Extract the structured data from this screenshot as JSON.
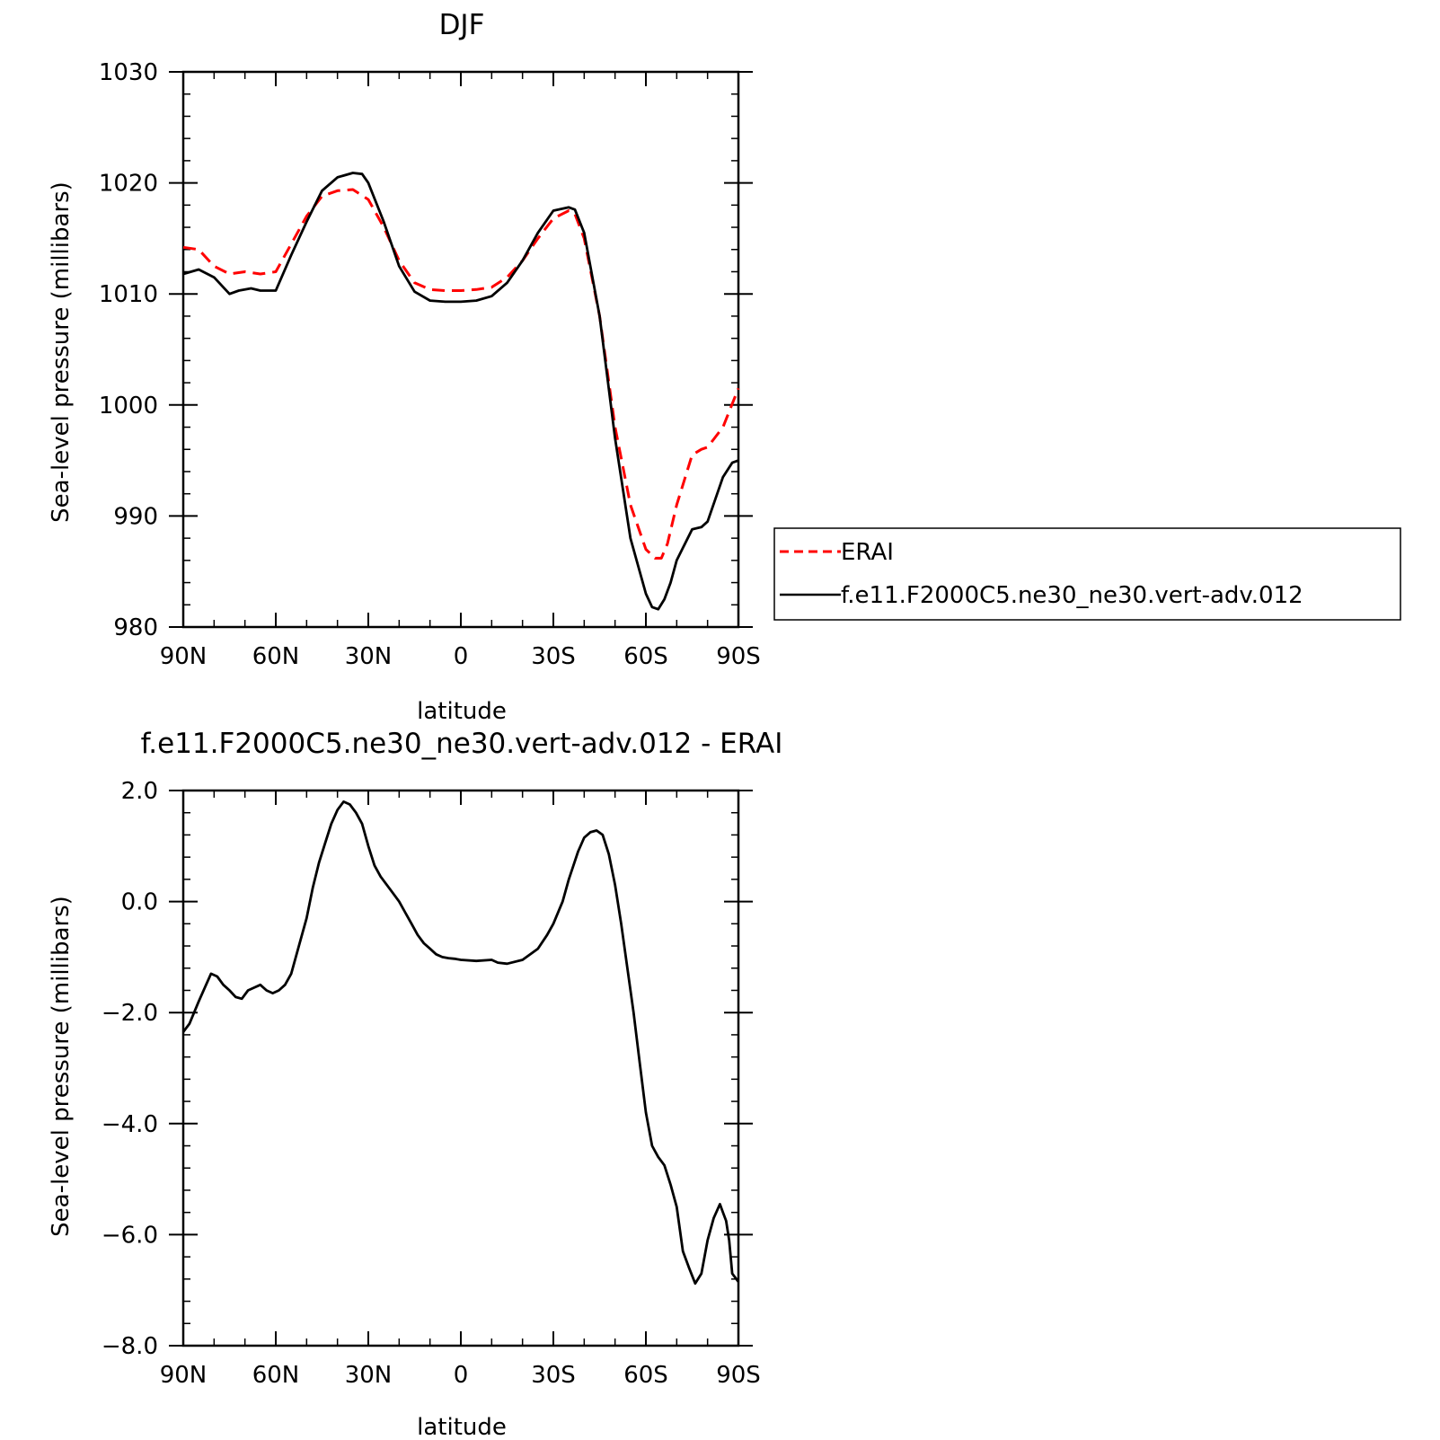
{
  "colors": {
    "erai": "#ff0000",
    "model": "#000000",
    "axes": "#000000"
  },
  "chart_data": [
    {
      "type": "line",
      "title": "DJF",
      "xlabel": "latitude",
      "ylabel": "Sea-level pressure (millibars)",
      "xlim": [
        90,
        -90
      ],
      "ylim": [
        980,
        1030
      ],
      "xticks": [
        90,
        60,
        30,
        0,
        -30,
        -60,
        -90
      ],
      "xticklabels": [
        "90N",
        "60N",
        "30N",
        "0",
        "30S",
        "60S",
        "90S"
      ],
      "yticks": [
        980,
        990,
        1000,
        1010,
        1020,
        1030
      ],
      "yticklabels": [
        "980",
        "990",
        "1000",
        "1010",
        "1020",
        "1030"
      ],
      "legend": "right",
      "series": [
        {
          "name": "ERAI",
          "style": "dashed",
          "color": "#ff0000",
          "x": [
            90,
            85,
            80,
            75,
            70,
            65,
            60,
            55,
            50,
            45,
            40,
            35,
            30,
            25,
            20,
            15,
            10,
            5,
            0,
            -5,
            -10,
            -15,
            -20,
            -25,
            -30,
            -35,
            -37,
            -40,
            -45,
            -50,
            -55,
            -60,
            -63,
            -65,
            -67,
            -70,
            -75,
            -78,
            -80,
            -85,
            -90
          ],
          "y": [
            1014.2,
            1014.0,
            1012.5,
            1011.8,
            1012.0,
            1011.8,
            1012.0,
            1014.5,
            1017.0,
            1018.8,
            1019.3,
            1019.4,
            1018.5,
            1016.0,
            1013.0,
            1011.0,
            1010.4,
            1010.3,
            1010.3,
            1010.4,
            1010.6,
            1011.5,
            1013.0,
            1015.0,
            1016.8,
            1017.5,
            1017.2,
            1015.0,
            1008.0,
            998.0,
            991.0,
            987.0,
            986.2,
            986.2,
            987.5,
            991.0,
            995.5,
            996.0,
            996.2,
            998.0,
            1001.5
          ]
        },
        {
          "name": "f.e11.F2000C5.ne30_ne30.vert-adv.012",
          "style": "solid",
          "color": "#000000",
          "x": [
            90,
            85,
            80,
            75,
            72,
            68,
            65,
            60,
            55,
            50,
            45,
            40,
            35,
            32,
            30,
            25,
            20,
            15,
            10,
            5,
            0,
            -5,
            -10,
            -15,
            -20,
            -25,
            -30,
            -35,
            -37,
            -40,
            -45,
            -50,
            -55,
            -60,
            -62,
            -64,
            -66,
            -68,
            -70,
            -75,
            -78,
            -80,
            -85,
            -88,
            -90
          ],
          "y": [
            1011.8,
            1012.2,
            1011.5,
            1010.0,
            1010.3,
            1010.5,
            1010.3,
            1010.3,
            1013.5,
            1016.5,
            1019.3,
            1020.5,
            1020.9,
            1020.8,
            1020.0,
            1016.5,
            1012.5,
            1010.2,
            1009.4,
            1009.3,
            1009.3,
            1009.4,
            1009.8,
            1011.0,
            1013.0,
            1015.5,
            1017.5,
            1017.8,
            1017.6,
            1015.5,
            1008.0,
            997.0,
            988.0,
            983.0,
            981.8,
            981.6,
            982.5,
            984.0,
            986.0,
            988.8,
            989.0,
            989.5,
            993.5,
            994.8,
            995.0
          ]
        }
      ]
    },
    {
      "type": "line",
      "title": "f.e11.F2000C5.ne30_ne30.vert-adv.012 - ERAI",
      "xlabel": "latitude",
      "ylabel": "Sea-level pressure (millibars)",
      "xlim": [
        90,
        -90
      ],
      "ylim": [
        -8.0,
        2.0
      ],
      "xticks": [
        90,
        60,
        30,
        0,
        -30,
        -60,
        -90
      ],
      "xticklabels": [
        "90N",
        "60N",
        "30N",
        "0",
        "30S",
        "60S",
        "90S"
      ],
      "yticks": [
        -8,
        -6,
        -4,
        -2,
        0,
        2
      ],
      "yticklabels": [
        "−8.0",
        "−6.0",
        "−4.0",
        "−2.0",
        "0.0",
        "2.0"
      ],
      "series": [
        {
          "style": "solid",
          "color": "#000000",
          "x": [
            90,
            88,
            85,
            83,
            81,
            79,
            77,
            75,
            73,
            71,
            69,
            67,
            65,
            63,
            61,
            59,
            57,
            55,
            53,
            50,
            48,
            46,
            44,
            42,
            40,
            38,
            36,
            34,
            32,
            30,
            28,
            26,
            24,
            22,
            20,
            18,
            16,
            14,
            12,
            10,
            8,
            6,
            4,
            2,
            0,
            -5,
            -10,
            -12,
            -15,
            -20,
            -25,
            -28,
            -30,
            -33,
            -35,
            -38,
            -40,
            -42,
            -44,
            -46,
            -48,
            -50,
            -52,
            -54,
            -56,
            -58,
            -60,
            -62,
            -64,
            -66,
            -68,
            -70,
            -72,
            -74,
            -76,
            -78,
            -80,
            -82,
            -84,
            -85,
            -86,
            -87,
            -88,
            -90
          ],
          "y": [
            -2.35,
            -2.2,
            -1.8,
            -1.55,
            -1.3,
            -1.35,
            -1.5,
            -1.6,
            -1.72,
            -1.75,
            -1.6,
            -1.55,
            -1.5,
            -1.6,
            -1.65,
            -1.6,
            -1.5,
            -1.3,
            -0.9,
            -0.3,
            0.25,
            0.7,
            1.05,
            1.4,
            1.65,
            1.8,
            1.75,
            1.6,
            1.4,
            1.0,
            0.65,
            0.45,
            0.3,
            0.15,
            0.0,
            -0.2,
            -0.4,
            -0.6,
            -0.75,
            -0.85,
            -0.95,
            -1.0,
            -1.02,
            -1.03,
            -1.05,
            -1.07,
            -1.05,
            -1.1,
            -1.12,
            -1.05,
            -0.85,
            -0.6,
            -0.4,
            0.0,
            0.4,
            0.9,
            1.15,
            1.25,
            1.28,
            1.2,
            0.85,
            0.3,
            -0.4,
            -1.2,
            -2.0,
            -2.9,
            -3.8,
            -4.4,
            -4.6,
            -4.75,
            -5.1,
            -5.5,
            -6.3,
            -6.6,
            -6.88,
            -6.7,
            -6.1,
            -5.7,
            -5.45,
            -5.6,
            -5.75,
            -6.1,
            -6.7,
            -6.85
          ]
        }
      ]
    }
  ]
}
